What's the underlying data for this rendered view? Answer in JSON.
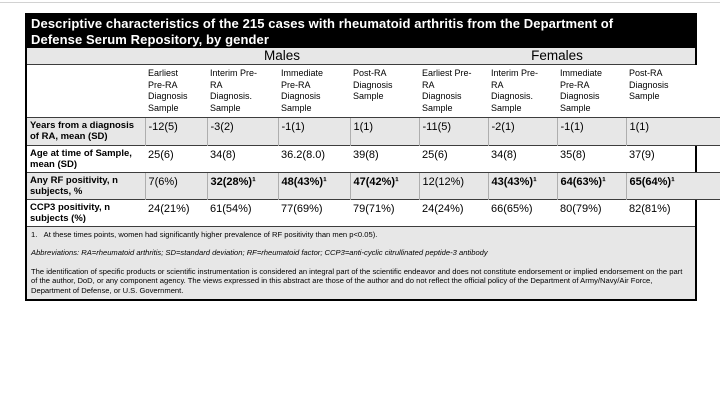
{
  "title": "Descriptive characteristics of the 215 cases with rheumatoid arthritis from the Department of\nDefense Serum Repository, by gender",
  "table": {
    "group_headers": {
      "males": "Males",
      "females": "Females"
    },
    "column_headers": [
      "Earliest\nPre-RA\nDiagnosis\nSample",
      "Interim Pre-\nRA\nDiagnosis.\nSample",
      "Immediate\nPre-RA\nDiagnosis\nSample",
      "Post-RA\nDiagnosis\nSample",
      "Earliest Pre-\nRA\nDiagnosis\nSample",
      "Interim Pre-\nRA\nDiagnosis.\nSample",
      "Immediate\nPre-RA\nDiagnosis\nSample",
      "Post-RA\nDiagnosis\nSample"
    ],
    "rows": [
      {
        "label": "Years from a diagnosis of RA, mean (SD)",
        "values": [
          "-12(5)",
          "-3(2)",
          "-1(1)",
          "1(1)",
          "-11(5)",
          "-2(1)",
          "-1(1)",
          "1(1)"
        ]
      },
      {
        "label": "Age at time of Sample, mean (SD)",
        "values": [
          "25(6)",
          "34(8)",
          "36.2(8.0)",
          "39(8)",
          "25(6)",
          "34(8)",
          "35(8)",
          "37(9)"
        ]
      },
      {
        "label": "Any RF positivity, n subjects, %",
        "values": [
          "7(6%)",
          "32(28%)¹",
          "48(43%)¹",
          "47(42%)¹",
          "12(12%)",
          "43(43%)¹",
          "64(63%)¹",
          "65(64%)¹"
        ]
      },
      {
        "label": "CCP3 positivity, n subjects (%)",
        "values": [
          "24(21%)",
          "61(54%)",
          "77(69%)",
          "79(71%)",
          "24(24%)",
          "66(65%)",
          "80(79%)",
          "82(81%)"
        ]
      }
    ]
  },
  "footnotes": {
    "note1": "1.   At these times points, women had significantly higher prevalence of RF positivity than men p<0.05).",
    "abbreviations": "Abbreviations: RA=rheumatoid arthritis; SD=standard deviation; RF=rheumatoid factor; CCP3=anti-cyclic citrullinated peptide-3 antibody",
    "disclaimer": "The identification of specific products or scientific instrumentation is considered an integral part of the scientific endeavor and does not constitute endorsement or implied endorsement on the part of the author, DoD, or any component agency. The views expressed in this abstract are those of the author and do not reflect the official policy of the Department of Army/Navy/Air Force, Department of Defense, or U.S. Government."
  },
  "colors": {
    "title_bar_bg": "#000000",
    "title_bar_text": "#ffffff",
    "stripe_bg": "#e7e7e7",
    "border": "#3d3d3d"
  }
}
